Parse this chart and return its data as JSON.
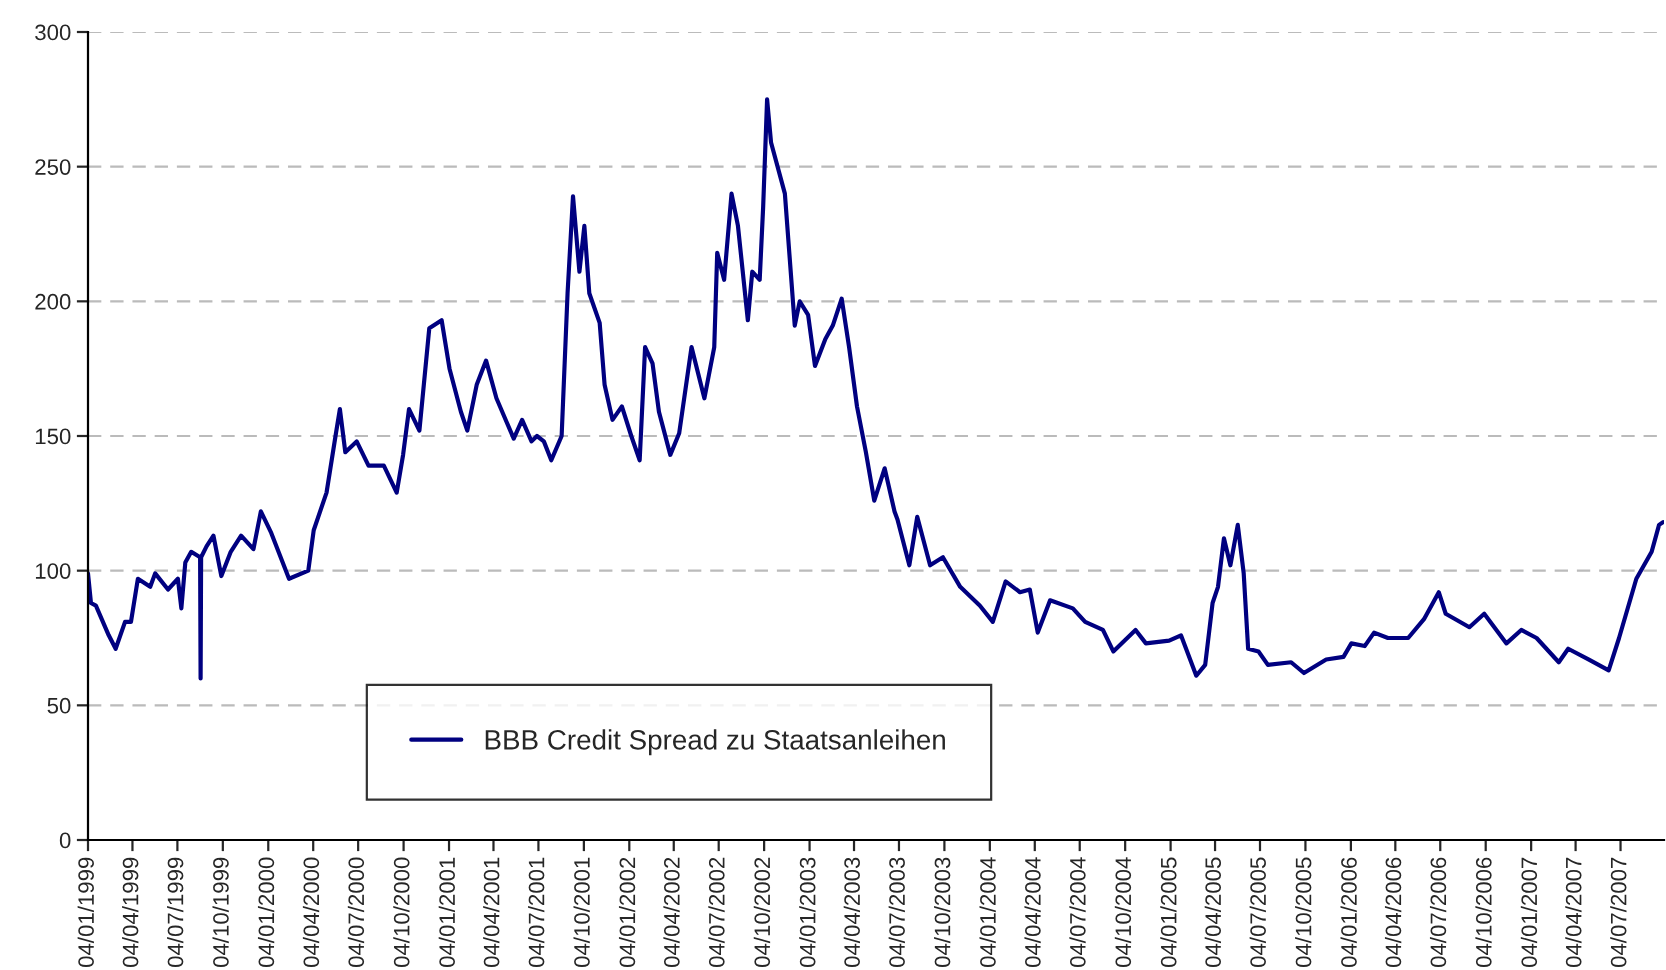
{
  "chart_data": {
    "type": "line",
    "x": [
      "1999-01-04",
      "1999-01-10",
      "1999-01-20",
      "1999-02-15",
      "1999-03-01",
      "1999-03-20",
      "1999-04-01",
      "1999-04-15",
      "1999-05-10",
      "1999-05-20",
      "1999-06-15",
      "1999-07-05",
      "1999-07-12",
      "1999-07-20",
      "1999-08-01",
      "1999-08-19",
      "1999-08-20",
      "1999-08-21",
      "1999-09-01",
      "1999-09-15",
      "1999-10-01",
      "1999-10-20",
      "1999-11-10",
      "1999-12-05",
      "1999-12-20",
      "2000-01-10",
      "2000-02-15",
      "2000-03-25",
      "2000-04-05",
      "2000-05-01",
      "2000-05-20",
      "2000-05-28",
      "2000-06-08",
      "2000-07-01",
      "2000-07-25",
      "2000-08-25",
      "2000-09-20",
      "2000-10-03",
      "2000-10-15",
      "2000-11-05",
      "2000-11-25",
      "2000-12-20",
      "2001-01-05",
      "2001-01-28",
      "2001-02-10",
      "2001-03-01",
      "2001-03-20",
      "2001-04-10",
      "2001-05-15",
      "2001-06-01",
      "2001-06-20",
      "2001-07-01",
      "2001-07-15",
      "2001-07-30",
      "2001-08-20",
      "2001-09-01",
      "2001-09-12",
      "2001-09-25",
      "2001-10-05",
      "2001-10-15",
      "2001-11-05",
      "2001-11-15",
      "2001-12-01",
      "2001-12-20",
      "2002-01-08",
      "2002-01-25",
      "2002-02-05",
      "2002-02-20",
      "2002-03-05",
      "2002-03-28",
      "2002-04-15",
      "2002-05-10",
      "2002-06-05",
      "2002-06-25",
      "2002-07-01",
      "2002-07-15",
      "2002-07-30",
      "2002-08-12",
      "2002-09-01",
      "2002-09-10",
      "2002-09-25",
      "2002-10-02",
      "2002-10-10",
      "2002-10-18",
      "2002-11-15",
      "2002-12-05",
      "2002-12-15",
      "2003-01-01",
      "2003-01-15",
      "2003-02-05",
      "2003-02-20",
      "2003-03-10",
      "2003-03-25",
      "2003-04-10",
      "2003-04-28",
      "2003-05-15",
      "2003-06-05",
      "2003-06-25",
      "2003-07-01",
      "2003-07-25",
      "2003-08-10",
      "2003-09-05",
      "2003-10-01",
      "2003-11-05",
      "2003-12-15",
      "2004-01-10",
      "2004-02-05",
      "2004-03-05",
      "2004-03-25",
      "2004-04-10",
      "2004-05-05",
      "2004-06-20",
      "2004-07-15",
      "2004-08-20",
      "2004-09-10",
      "2004-10-25",
      "2004-11-15",
      "2005-01-01",
      "2005-01-25",
      "2005-02-25",
      "2005-03-15",
      "2005-03-30",
      "2005-04-10",
      "2005-04-22",
      "2005-05-05",
      "2005-05-20",
      "2005-06-01",
      "2005-06-10",
      "2005-07-01",
      "2005-07-20",
      "2005-09-05",
      "2005-10-01",
      "2005-11-15",
      "2005-12-20",
      "2006-01-05",
      "2006-02-01",
      "2006-02-20",
      "2006-03-20",
      "2006-04-30",
      "2006-06-01",
      "2006-07-01",
      "2006-07-15",
      "2006-09-01",
      "2006-10-01",
      "2006-11-15",
      "2006-12-15",
      "2007-01-15",
      "2007-03-01",
      "2007-03-20",
      "2007-05-01",
      "2007-06-10",
      "2007-07-01",
      "2007-08-05",
      "2007-09-05",
      "2007-09-20",
      "2007-09-28"
    ],
    "series": [
      {
        "name": "BBB Credit Spread zu Staatsanleihen",
        "color": "#000080",
        "values": [
          99,
          88,
          87,
          76,
          71,
          81,
          81,
          97,
          94,
          99,
          93,
          97,
          86,
          103,
          107,
          105,
          60,
          105,
          109,
          113,
          98,
          107,
          113,
          108,
          122,
          114,
          97,
          100,
          115,
          129,
          151,
          160,
          144,
          148,
          139,
          139,
          129,
          143,
          160,
          152,
          190,
          193,
          175,
          159,
          152,
          169,
          178,
          164,
          149,
          156,
          148,
          150,
          148,
          141,
          150,
          203,
          239,
          211,
          228,
          203,
          192,
          169,
          156,
          161,
          150,
          141,
          183,
          177,
          159,
          143,
          151,
          183,
          164,
          183,
          218,
          208,
          240,
          228,
          193,
          211,
          208,
          235,
          275,
          259,
          240,
          191,
          200,
          195,
          176,
          186,
          191,
          201,
          183,
          161,
          144,
          126,
          138,
          122,
          119,
          102,
          120,
          102,
          105,
          94,
          87,
          81,
          96,
          92,
          93,
          77,
          89,
          86,
          81,
          78,
          70,
          78,
          73,
          74,
          76,
          61,
          65,
          88,
          94,
          112,
          102,
          117,
          99,
          71,
          70,
          65,
          66,
          62,
          67,
          68,
          73,
          72,
          77,
          75,
          75,
          82,
          92,
          84,
          79,
          84,
          73,
          78,
          75,
          66,
          71,
          67,
          63,
          75,
          97,
          107,
          117,
          118
        ]
      }
    ],
    "xlim": [
      "1999-01-04",
      "2007-09-30"
    ],
    "xticks": [
      {
        "value": "1999-01-04",
        "label": "04/01/1999"
      },
      {
        "value": "1999-04-04",
        "label": "04/04/1999"
      },
      {
        "value": "1999-07-04",
        "label": "04/07/1999"
      },
      {
        "value": "1999-10-04",
        "label": "04/10/1999"
      },
      {
        "value": "2000-01-04",
        "label": "04/01/2000"
      },
      {
        "value": "2000-04-04",
        "label": "04/04/2000"
      },
      {
        "value": "2000-07-04",
        "label": "04/07/2000"
      },
      {
        "value": "2000-10-04",
        "label": "04/10/2000"
      },
      {
        "value": "2001-01-04",
        "label": "04/01/2001"
      },
      {
        "value": "2001-04-04",
        "label": "04/04/2001"
      },
      {
        "value": "2001-07-04",
        "label": "04/07/2001"
      },
      {
        "value": "2001-10-04",
        "label": "04/10/2001"
      },
      {
        "value": "2002-01-04",
        "label": "04/01/2002"
      },
      {
        "value": "2002-04-04",
        "label": "04/04/2002"
      },
      {
        "value": "2002-07-04",
        "label": "04/07/2002"
      },
      {
        "value": "2002-10-04",
        "label": "04/10/2002"
      },
      {
        "value": "2003-01-04",
        "label": "04/01/2003"
      },
      {
        "value": "2003-04-04",
        "label": "04/04/2003"
      },
      {
        "value": "2003-07-04",
        "label": "04/07/2003"
      },
      {
        "value": "2003-10-04",
        "label": "04/10/2003"
      },
      {
        "value": "2004-01-04",
        "label": "04/01/2004"
      },
      {
        "value": "2004-04-04",
        "label": "04/04/2004"
      },
      {
        "value": "2004-07-04",
        "label": "04/07/2004"
      },
      {
        "value": "2004-10-04",
        "label": "04/10/2004"
      },
      {
        "value": "2005-01-04",
        "label": "04/01/2005"
      },
      {
        "value": "2005-04-04",
        "label": "04/04/2005"
      },
      {
        "value": "2005-07-04",
        "label": "04/07/2005"
      },
      {
        "value": "2005-10-04",
        "label": "04/10/2005"
      },
      {
        "value": "2006-01-04",
        "label": "04/01/2006"
      },
      {
        "value": "2006-04-04",
        "label": "04/04/2006"
      },
      {
        "value": "2006-07-04",
        "label": "04/07/2006"
      },
      {
        "value": "2006-10-04",
        "label": "04/10/2006"
      },
      {
        "value": "2007-01-04",
        "label": "04/01/2007"
      },
      {
        "value": "2007-04-04",
        "label": "04/04/2007"
      },
      {
        "value": "2007-07-04",
        "label": "04/07/2007"
      }
    ],
    "ylim": [
      0,
      300
    ],
    "yticks": [
      0,
      50,
      100,
      150,
      200,
      250,
      300
    ],
    "grid": "y",
    "legend": "bottom",
    "line_style": "solid",
    "marker": "none"
  }
}
